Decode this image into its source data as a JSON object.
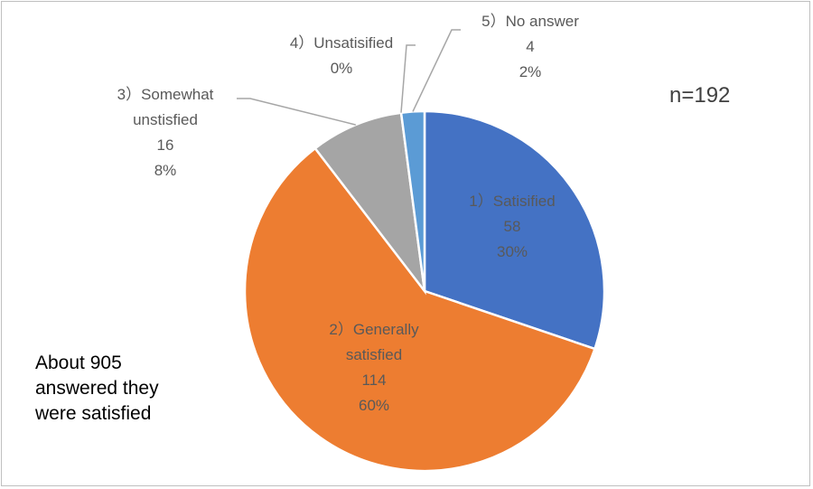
{
  "chart_data": {
    "type": "pie",
    "n_label": "n=192",
    "slices": [
      {
        "label": "1）Satisified",
        "count": 58,
        "percent": "30%",
        "color": "#4472c4"
      },
      {
        "label": "2）Generally satisfied",
        "count": 114,
        "percent": "60%",
        "color": "#ed7d31"
      },
      {
        "label": "3）Somewhat unstisfied",
        "count": 16,
        "percent": "8%",
        "color": "#a5a5a5"
      },
      {
        "label": "4）Unsatisified",
        "count": 0,
        "percent": "0%",
        "color": "#ffc000"
      },
      {
        "label": "5）No answer",
        "count": 4,
        "percent": "2%",
        "color": "#5b9bd5"
      }
    ],
    "annotation_lines": [
      "About 905",
      "answered they",
      "were satisfied"
    ]
  },
  "labels": {
    "s1": [
      "1）Satisified",
      "58",
      "30%"
    ],
    "s2": [
      "2）Generally",
      "satisfied",
      "114",
      "60%"
    ],
    "s3": [
      "3）Somewhat",
      "unstisfied",
      "16",
      "8%"
    ],
    "s4": [
      "4）Unsatisified",
      "0%"
    ],
    "s5": [
      "5）No answer",
      "4",
      "2%"
    ]
  }
}
